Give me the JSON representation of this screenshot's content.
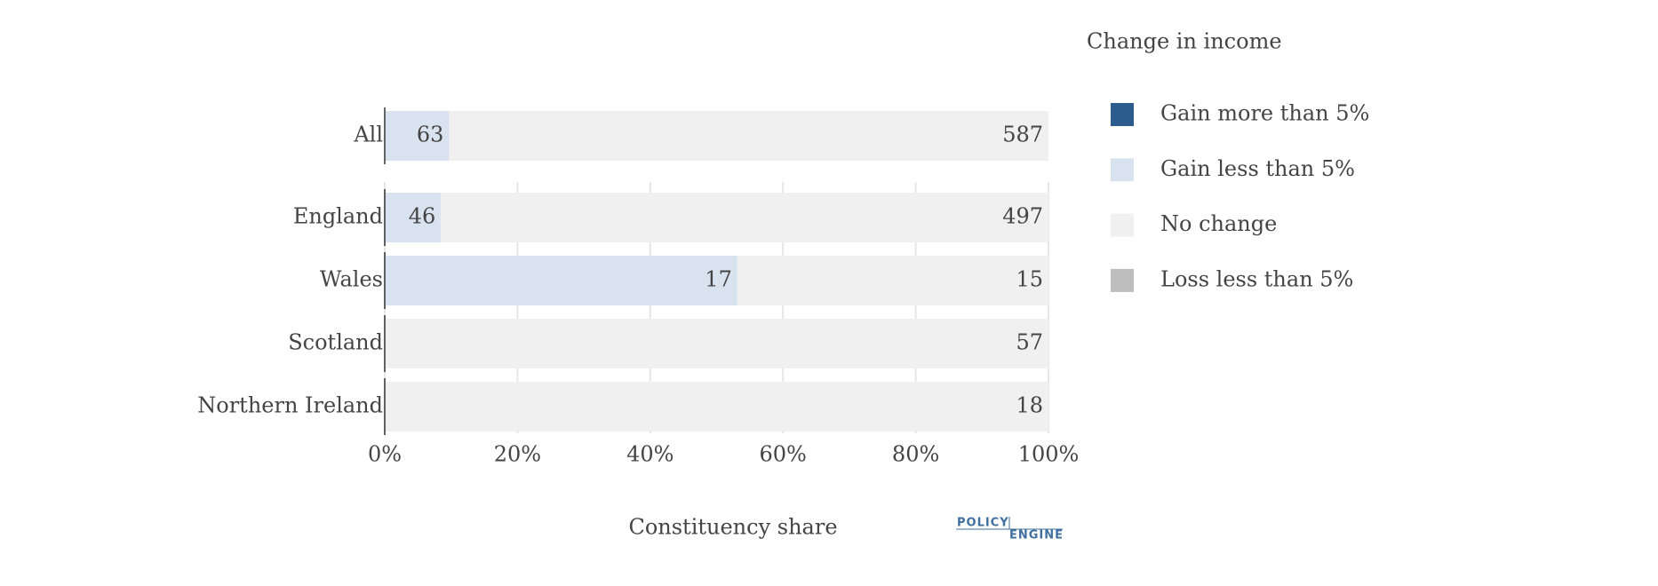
{
  "chart_data": {
    "type": "bar",
    "orientation": "horizontal",
    "stack": "percent",
    "x_label": "Constituency share",
    "legend_title": "Change in income",
    "legend_position": "right",
    "grid": true,
    "categories": [
      "All",
      "England",
      "Wales",
      "Scotland",
      "Northern Ireland"
    ],
    "series": [
      {
        "name": "Gain more than 5%",
        "color": "#2c5b8e",
        "values": [
          0,
          0,
          0,
          0,
          0
        ]
      },
      {
        "name": "Gain less than 5%",
        "color": "#d9e3f0",
        "values": [
          63,
          46,
          17,
          0,
          0
        ]
      },
      {
        "name": "No change",
        "color": "#f0f0f0",
        "values": [
          587,
          497,
          15,
          57,
          18
        ]
      },
      {
        "name": "Loss less than 5%",
        "color": "#bdbdbd",
        "values": [
          0,
          0,
          0,
          0,
          0
        ]
      }
    ],
    "xlim": [
      0,
      100
    ],
    "xticks": [
      {
        "value": 0,
        "label": "0%"
      },
      {
        "value": 20,
        "label": "20%"
      },
      {
        "value": 40,
        "label": "40%"
      },
      {
        "value": 60,
        "label": "60%"
      },
      {
        "value": 80,
        "label": "80%"
      },
      {
        "value": 100,
        "label": "100%"
      }
    ],
    "logo": {
      "top": "POLICY",
      "bottom": "ENGINE"
    }
  }
}
